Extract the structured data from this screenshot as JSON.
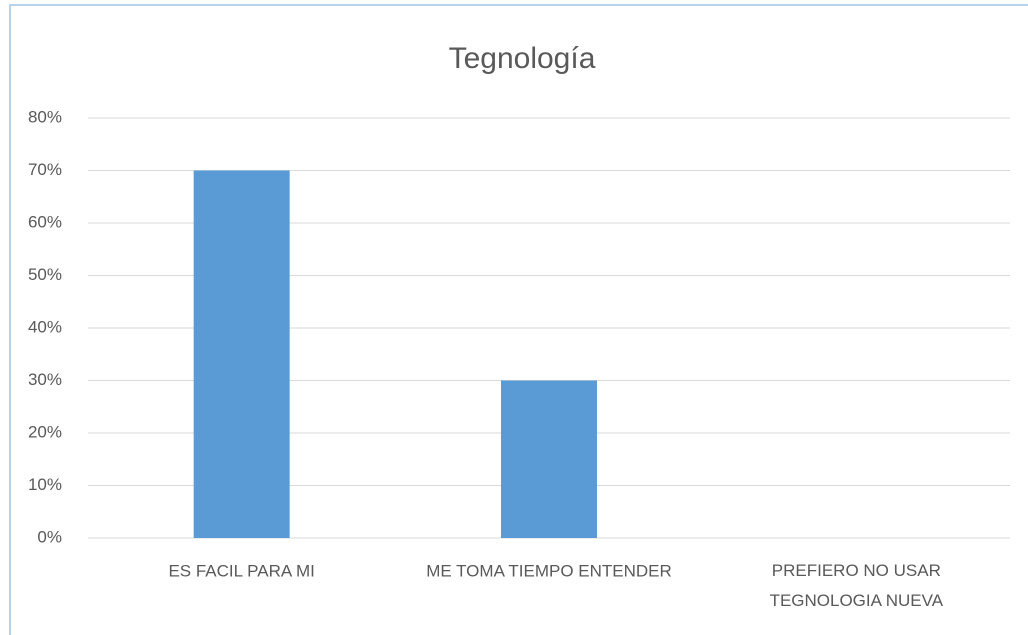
{
  "chart_data": {
    "type": "bar",
    "title": "Tegnología",
    "categories": [
      "ES FACIL PARA MI",
      "ME TOMA TIEMPO ENTENDER",
      "PREFIERO NO USAR TEGNOLOGIA NUEVA"
    ],
    "values": [
      70,
      30,
      0
    ],
    "color": "#5b9bd5",
    "ylim": [
      0,
      80
    ],
    "yticks": [
      {
        "value": 0,
        "label": "0%"
      },
      {
        "value": 10,
        "label": "10%"
      },
      {
        "value": 20,
        "label": "20%"
      },
      {
        "value": 30,
        "label": "30%"
      },
      {
        "value": 40,
        "label": "40%"
      },
      {
        "value": 50,
        "label": "50%"
      },
      {
        "value": 60,
        "label": "60%"
      },
      {
        "value": 70,
        "label": "70%"
      },
      {
        "value": 80,
        "label": "80%"
      }
    ],
    "grid": true
  }
}
